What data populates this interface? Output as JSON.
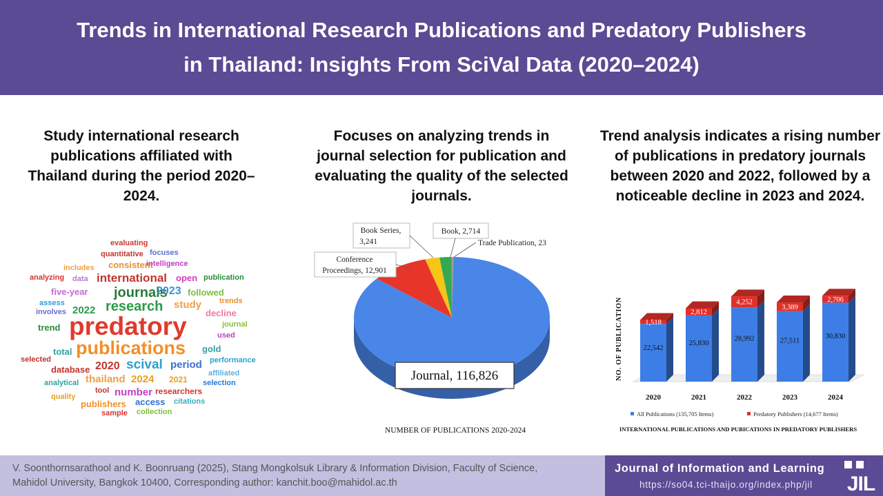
{
  "header": {
    "title_line1": "Trends in International Research Publications and Predatory Publishers",
    "title_line2": "in Thailand: Insights From SciVal Data (2020–2024)"
  },
  "columns": [
    {
      "text": "Study international research publications affiliated with Thailand during the period 2020–2024."
    },
    {
      "text": "Focuses on analyzing trends in journal selection for publication and evaluating the quality of the selected journals."
    },
    {
      "text": "Trend analysis indicates a rising number of publications in predatory journals between 2020 and 2022, followed by a noticeable decline in 2023 and 2024."
    }
  ],
  "word_cloud": [
    {
      "text": "evaluating",
      "color": "#d2352e"
    },
    {
      "text": "focuses",
      "color": "#5b6fd1"
    },
    {
      "text": "quantitative",
      "color": "#c0342e"
    },
    {
      "text": "consistent",
      "color": "#e8902a"
    },
    {
      "text": "intelligence",
      "color": "#c23fc4"
    },
    {
      "text": "includes",
      "color": "#f0a040"
    },
    {
      "text": "open",
      "color": "#d23fbf"
    },
    {
      "text": "analyzing",
      "color": "#d2352e"
    },
    {
      "text": "data",
      "color": "#b57ccc"
    },
    {
      "text": "international",
      "color": "#c0342e"
    },
    {
      "text": "publication",
      "color": "#2a8b3a"
    },
    {
      "text": "five-year",
      "color": "#c46ad2"
    },
    {
      "text": "journals",
      "color": "#2a7a3a"
    },
    {
      "text": "2023",
      "color": "#3a8fd4"
    },
    {
      "text": "followed",
      "color": "#7bbf3a"
    },
    {
      "text": "assess",
      "color": "#2f9fd4"
    },
    {
      "text": "research",
      "color": "#2a9b46"
    },
    {
      "text": "study",
      "color": "#f0a040"
    },
    {
      "text": "trends",
      "color": "#e8902a"
    },
    {
      "text": "2022",
      "color": "#2a9b46"
    },
    {
      "text": "involves",
      "color": "#6a6ad2"
    },
    {
      "text": "decline",
      "color": "#f07a9a"
    },
    {
      "text": "predatory",
      "color": "#e03a2e"
    },
    {
      "text": "trend",
      "color": "#2a8b3a"
    },
    {
      "text": "journal",
      "color": "#8dbf3a"
    },
    {
      "text": "used",
      "color": "#c23fc4"
    },
    {
      "text": "publications",
      "color": "#f0902a"
    },
    {
      "text": "total",
      "color": "#2fa3a0"
    },
    {
      "text": "gold",
      "color": "#2fa3a0"
    },
    {
      "text": "selected",
      "color": "#c0342e"
    },
    {
      "text": "performance",
      "color": "#2f9fd4"
    },
    {
      "text": "2020",
      "color": "#c0342e"
    },
    {
      "text": "scival",
      "color": "#2f9fd4"
    },
    {
      "text": "period",
      "color": "#3a6fd4"
    },
    {
      "text": "database",
      "color": "#c0342e"
    },
    {
      "text": "affiliated",
      "color": "#5bb0e0"
    },
    {
      "text": "analytical",
      "color": "#2fa3a0"
    },
    {
      "text": "thailand",
      "color": "#f0a040"
    },
    {
      "text": "2024",
      "color": "#e8a020"
    },
    {
      "text": "2021",
      "color": "#e8a020"
    },
    {
      "text": "selection",
      "color": "#2a7ad4"
    },
    {
      "text": "tool",
      "color": "#c0342e"
    },
    {
      "text": "number",
      "color": "#c23fc4"
    },
    {
      "text": "researchers",
      "color": "#d2352e"
    },
    {
      "text": "quality",
      "color": "#e8a020"
    },
    {
      "text": "publishers",
      "color": "#f0902a"
    },
    {
      "text": "access",
      "color": "#2f6fd4"
    },
    {
      "text": "citations",
      "color": "#2fb0c0"
    },
    {
      "text": "sample",
      "color": "#d2352e"
    },
    {
      "text": "collection",
      "color": "#7bbf3a"
    }
  ],
  "chart_data": [
    {
      "type": "pie",
      "title": "NUMBER OF PUBLICATIONS 2020-2024",
      "slices": [
        {
          "label": "Journal",
          "value": 116826,
          "value_text": "116,826",
          "color": "#4a86e8"
        },
        {
          "label": "Conference Proceedings",
          "value": 12901,
          "value_text": "12,901",
          "color": "#e8352a"
        },
        {
          "label": "Book Series",
          "value": 3241,
          "value_text": "3,241",
          "color": "#f5c518"
        },
        {
          "label": "Book",
          "value": 2714,
          "value_text": "2,714",
          "color": "#34a853"
        },
        {
          "label": "Trade Publication",
          "value": 23,
          "value_text": "23",
          "color": "#9e9e9e"
        }
      ]
    },
    {
      "type": "bar",
      "stacked": true,
      "title": "INTERNATIONAL PUBLICATIONS AND PUBICATIONS IN PREDATORY PUBLISHERS",
      "ylabel": "NO. OF PUBLICATION",
      "categories": [
        "2020",
        "2021",
        "2022",
        "2023",
        "2024"
      ],
      "series": [
        {
          "name": "All Publications (135,705 Items)",
          "values": [
            22542,
            25830,
            28992,
            27511,
            30830
          ],
          "value_labels": [
            "22,542",
            "25,830",
            "28,992",
            "27,511",
            "30,830"
          ],
          "color": "#3d7ee6"
        },
        {
          "name": "Predatory Publishers (14,677 Items)",
          "values": [
            1518,
            2812,
            4252,
            3389,
            2706
          ],
          "value_labels": [
            "1,518",
            "2,812",
            "4,252",
            "3,389",
            "2,706"
          ],
          "color": "#e0302a"
        }
      ],
      "ylim": [
        0,
        36000
      ],
      "grid": false,
      "legend": "bottom"
    }
  ],
  "footer": {
    "citation_line1": "V. Soonthornsarathool and K. Boonruang (2025), Stang Mongkolsuk Library & Information Division, Faculty of Science,",
    "citation_line2": "Mahidol University, Bangkok 10400, Corresponding author: kanchit.boo@mahidol.ac.th",
    "journal_name": "Journal of Information and Learning",
    "journal_url": "https://so04.tci-thaijo.org/index.php/jil",
    "logo_text": "JIL"
  }
}
